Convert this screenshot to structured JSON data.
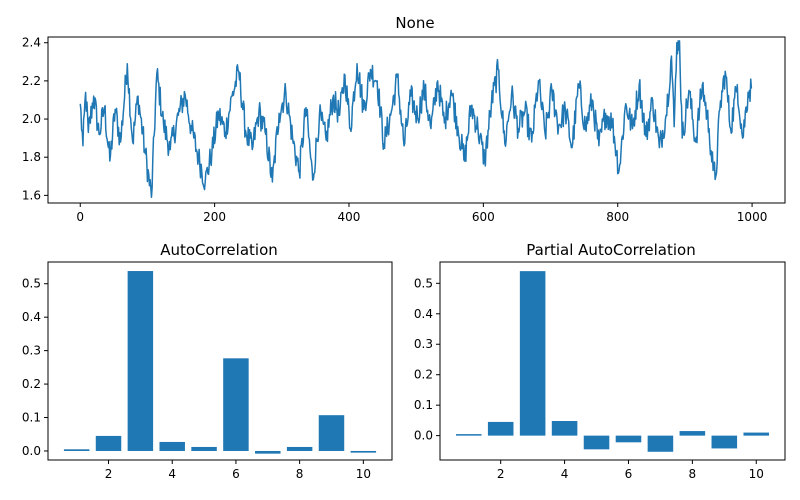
{
  "colors": {
    "series": "#1f77b4",
    "axis": "#000000",
    "background": "#ffffff"
  },
  "chart_data": [
    {
      "type": "line",
      "title": "None",
      "xlabel": "",
      "ylabel": "",
      "xlim": [
        -48,
        1049
      ],
      "ylim": [
        1.56,
        2.43
      ],
      "xticks": [
        0,
        200,
        400,
        600,
        800,
        1000
      ],
      "xtick_labels": [
        "0",
        "200",
        "400",
        "600",
        "800",
        "1000"
      ],
      "yticks": [
        1.6,
        1.8,
        2.0,
        2.2,
        2.4
      ],
      "ytick_labels": [
        "1.6",
        "1.8",
        "2.0",
        "2.2",
        "2.4"
      ],
      "grid": false,
      "legend": "none",
      "n_points": 1000,
      "anchor_points": [
        [
          0,
          2.08
        ],
        [
          4,
          1.86
        ],
        [
          8,
          2.14
        ],
        [
          12,
          1.93
        ],
        [
          20,
          2.12
        ],
        [
          28,
          1.92
        ],
        [
          36,
          2.06
        ],
        [
          44,
          1.78
        ],
        [
          52,
          2.05
        ],
        [
          60,
          1.88
        ],
        [
          70,
          2.29
        ],
        [
          78,
          1.88
        ],
        [
          86,
          2.12
        ],
        [
          96,
          1.84
        ],
        [
          106,
          1.59
        ],
        [
          114,
          2.24
        ],
        [
          124,
          1.97
        ],
        [
          134,
          1.84
        ],
        [
          146,
          2.02
        ],
        [
          156,
          2.13
        ],
        [
          166,
          1.94
        ],
        [
          176,
          1.8
        ],
        [
          186,
          1.67
        ],
        [
          196,
          1.83
        ],
        [
          206,
          2.03
        ],
        [
          216,
          1.93
        ],
        [
          226,
          2.12
        ],
        [
          236,
          2.25
        ],
        [
          246,
          1.94
        ],
        [
          256,
          1.84
        ],
        [
          266,
          2.04
        ],
        [
          276,
          1.92
        ],
        [
          286,
          1.67
        ],
        [
          296,
          2.03
        ],
        [
          306,
          2.14
        ],
        [
          316,
          1.9
        ],
        [
          326,
          1.72
        ],
        [
          336,
          2.06
        ],
        [
          346,
          1.68
        ],
        [
          356,
          2.02
        ],
        [
          366,
          1.89
        ],
        [
          376,
          2.11
        ],
        [
          386,
          2.02
        ],
        [
          394,
          2.23
        ],
        [
          402,
          1.95
        ],
        [
          412,
          2.29
        ],
        [
          422,
          2.05
        ],
        [
          432,
          2.26
        ],
        [
          442,
          2.2
        ],
        [
          452,
          1.87
        ],
        [
          462,
          2.02
        ],
        [
          472,
          2.22
        ],
        [
          482,
          1.86
        ],
        [
          492,
          2.12
        ],
        [
          502,
          2.01
        ],
        [
          512,
          2.16
        ],
        [
          522,
          1.95
        ],
        [
          532,
          2.2
        ],
        [
          542,
          1.98
        ],
        [
          552,
          2.15
        ],
        [
          562,
          1.96
        ],
        [
          572,
          1.78
        ],
        [
          582,
          2.07
        ],
        [
          592,
          1.95
        ],
        [
          602,
          1.78
        ],
        [
          612,
          2.08
        ],
        [
          622,
          2.26
        ],
        [
          632,
          1.87
        ],
        [
          642,
          2.13
        ],
        [
          652,
          1.95
        ],
        [
          662,
          2.04
        ],
        [
          672,
          1.88
        ],
        [
          682,
          2.2
        ],
        [
          692,
          1.92
        ],
        [
          702,
          2.15
        ],
        [
          712,
          1.96
        ],
        [
          722,
          2.05
        ],
        [
          732,
          1.85
        ],
        [
          742,
          2.18
        ],
        [
          752,
          1.95
        ],
        [
          762,
          2.1
        ],
        [
          772,
          1.86
        ],
        [
          782,
          2.03
        ],
        [
          792,
          1.98
        ],
        [
          802,
          1.73
        ],
        [
          812,
          2.08
        ],
        [
          822,
          1.95
        ],
        [
          832,
          2.18
        ],
        [
          842,
          1.91
        ],
        [
          852,
          2.1
        ],
        [
          862,
          1.85
        ],
        [
          872,
          2.02
        ],
        [
          880,
          2.33
        ],
        [
          884,
          1.96
        ],
        [
          888,
          2.4
        ],
        [
          892,
          2.41
        ],
        [
          896,
          1.9
        ],
        [
          906,
          2.15
        ],
        [
          916,
          1.88
        ],
        [
          926,
          2.18
        ],
        [
          936,
          1.95
        ],
        [
          942,
          1.73
        ],
        [
          946,
          1.7
        ],
        [
          952,
          2.05
        ],
        [
          960,
          2.25
        ],
        [
          968,
          1.95
        ],
        [
          978,
          2.18
        ],
        [
          986,
          1.9
        ],
        [
          994,
          2.14
        ],
        [
          999,
          2.16
        ]
      ]
    },
    {
      "type": "bar",
      "title": "AutoCorrelation",
      "xlabel": "",
      "ylabel": "",
      "categories": [
        1,
        2,
        3,
        4,
        5,
        6,
        7,
        8,
        9,
        10
      ],
      "values": [
        0.005,
        0.045,
        0.538,
        0.027,
        0.012,
        0.277,
        -0.008,
        0.012,
        0.107,
        -0.005
      ],
      "xlim": [
        0.1,
        10.9
      ],
      "ylim": [
        -0.027,
        0.565
      ],
      "xticks": [
        2,
        4,
        6,
        8,
        10
      ],
      "xtick_labels": [
        "2",
        "4",
        "6",
        "8",
        "10"
      ],
      "yticks": [
        0.0,
        0.1,
        0.2,
        0.3,
        0.4,
        0.5
      ],
      "ytick_labels": [
        "0.0",
        "0.1",
        "0.2",
        "0.3",
        "0.4",
        "0.5"
      ],
      "grid": false,
      "legend": "none"
    },
    {
      "type": "bar",
      "title": "Partial AutoCorrelation",
      "xlabel": "",
      "ylabel": "",
      "categories": [
        1,
        2,
        3,
        4,
        5,
        6,
        7,
        8,
        9,
        10
      ],
      "values": [
        0.005,
        0.045,
        0.54,
        0.048,
        -0.045,
        -0.022,
        -0.053,
        0.015,
        -0.042,
        0.01
      ],
      "xlim": [
        0.1,
        10.9
      ],
      "ylim": [
        -0.08,
        0.57
      ],
      "xticks": [
        2,
        4,
        6,
        8,
        10
      ],
      "xtick_labels": [
        "2",
        "4",
        "6",
        "8",
        "10"
      ],
      "yticks": [
        0.0,
        0.1,
        0.2,
        0.3,
        0.4,
        0.5
      ],
      "ytick_labels": [
        "0.0",
        "0.1",
        "0.2",
        "0.3",
        "0.4",
        "0.5"
      ],
      "grid": false,
      "legend": "none"
    }
  ]
}
